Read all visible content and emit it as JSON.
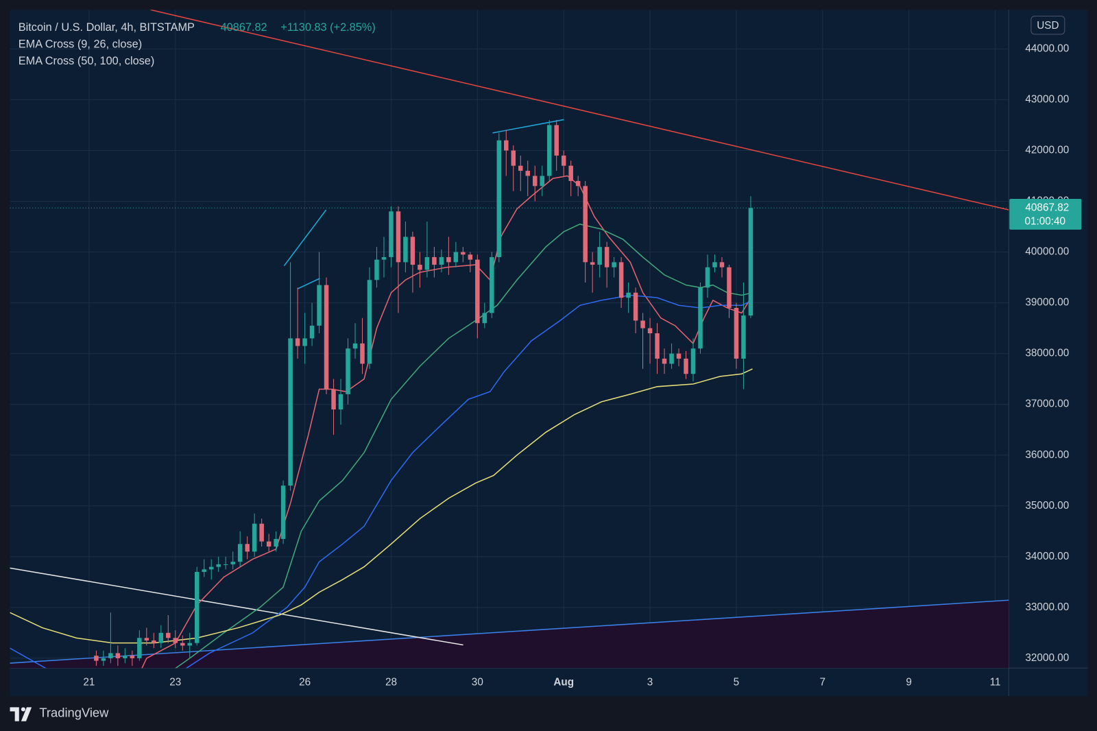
{
  "chart_data": {
    "type": "candlestick",
    "title": "Bitcoin / U.S. Dollar, 4h, BITSTAMP",
    "change": "+1130.83 (+2.85%)",
    "countdown": "01:00:40",
    "currency": "USD",
    "brand": "TradingView",
    "indicators": [
      "EMA Cross (9, 26, close)",
      "EMA Cross (50, 100, close)"
    ],
    "up_color": "#26a69a",
    "down_color": "#e06a78",
    "xlim": [
      -44,
      511.5
    ],
    "ylim": [
      31807,
      44771
    ],
    "xticks": [
      {
        "value": 0,
        "label": "21"
      },
      {
        "value": 48,
        "label": "23"
      },
      {
        "value": 120,
        "label": "26"
      },
      {
        "value": 168,
        "label": "28"
      },
      {
        "value": 216,
        "label": "30"
      },
      {
        "value": 264,
        "label": "Aug"
      },
      {
        "value": 312,
        "label": "3"
      },
      {
        "value": 360,
        "label": "5"
      },
      {
        "value": 408,
        "label": "7"
      },
      {
        "value": 456,
        "label": "9"
      },
      {
        "value": 504,
        "label": "11"
      }
    ],
    "yticks": [
      {
        "value": 32000,
        "label": "32000.00"
      },
      {
        "value": 33000,
        "label": "33000.00"
      },
      {
        "value": 34000,
        "label": "34000.00"
      },
      {
        "value": 35000,
        "label": "35000.00"
      },
      {
        "value": 36000,
        "label": "36000.00"
      },
      {
        "value": 37000,
        "label": "37000.00"
      },
      {
        "value": 38000,
        "label": "38000.00"
      },
      {
        "value": 39000,
        "label": "39000.00"
      },
      {
        "value": 40000,
        "label": "40000.00"
      },
      {
        "value": 41000,
        "label": "41000.00"
      },
      {
        "value": 42000,
        "label": "42000.00"
      },
      {
        "value": 43000,
        "label": "43000.00"
      },
      {
        "value": 44000,
        "label": "44000.00"
      }
    ],
    "grid": true,
    "x": [
      4,
      8,
      12,
      16,
      20,
      24,
      28,
      32,
      36,
      40,
      44,
      48,
      52,
      56,
      60,
      64,
      68,
      72,
      76,
      80,
      84,
      88,
      92,
      96,
      100,
      104,
      108,
      112,
      116,
      120,
      124,
      128,
      132,
      136,
      140,
      144,
      148,
      152,
      156,
      160,
      164,
      168,
      172,
      176,
      180,
      184,
      188,
      192,
      196,
      200,
      204,
      208,
      212,
      216,
      220,
      224,
      228,
      232,
      236,
      240,
      244,
      248,
      252,
      256,
      260,
      264,
      268,
      272,
      276,
      280,
      284,
      288,
      292,
      296,
      300,
      304,
      308,
      312,
      316,
      320,
      324,
      328,
      332,
      336,
      340,
      344,
      348,
      352,
      356,
      360,
      364,
      368
    ],
    "open": [
      32050,
      31950,
      32000,
      32100,
      32000,
      32050,
      32000,
      32400,
      32350,
      32300,
      32500,
      32400,
      32300,
      32250,
      32300,
      33700,
      33750,
      33800,
      33850,
      33850,
      33900,
      34250,
      34100,
      34650,
      34300,
      34200,
      34350,
      35400,
      38300,
      38150,
      38300,
      38550,
      39350,
      37300,
      36900,
      37200,
      38100,
      38200,
      37800,
      39450,
      39850,
      39900,
      40800,
      39800,
      40300,
      39750,
      39650,
      39900,
      39750,
      39900,
      39800,
      40000,
      39950,
      39850,
      38600,
      38800,
      39900,
      42200,
      42000,
      41700,
      41600,
      41500,
      41300,
      41500,
      42500,
      41900,
      41700,
      41400,
      41300,
      39800,
      39750,
      40100,
      39700,
      39800,
      39100,
      39200,
      38650,
      38500,
      38400,
      37900,
      37800,
      38000,
      37900,
      37600,
      38100,
      39300,
      39700,
      39800,
      39700,
      38900,
      37900,
      38750
    ],
    "high": [
      32150,
      32150,
      32900,
      32250,
      32200,
      32150,
      32550,
      32600,
      32500,
      32650,
      32850,
      32550,
      32450,
      32500,
      33800,
      33950,
      33950,
      34000,
      34000,
      34100,
      34500,
      34400,
      34850,
      34750,
      34450,
      34500,
      35500,
      39800,
      39300,
      38800,
      39000,
      40000,
      39500,
      37500,
      37500,
      38300,
      38600,
      38700,
      39700,
      40100,
      40300,
      40900,
      40900,
      40600,
      40400,
      40000,
      40600,
      40100,
      40050,
      40300,
      40200,
      40100,
      40000,
      39950,
      39000,
      40000,
      42350,
      42400,
      42100,
      41900,
      41800,
      41700,
      41700,
      42600,
      42600,
      42000,
      41800,
      41500,
      41400,
      40000,
      40400,
      40200,
      39900,
      39900,
      39400,
      39300,
      38800,
      38700,
      38600,
      38100,
      38200,
      38100,
      38050,
      38300,
      39400,
      39950,
      39950,
      39900,
      39750,
      39000,
      39400,
      41100
    ],
    "low": [
      31850,
      31850,
      31900,
      31850,
      31900,
      31850,
      31950,
      32250,
      32200,
      32200,
      32300,
      32200,
      32150,
      32000,
      32250,
      33600,
      33550,
      33700,
      33750,
      33750,
      33800,
      33950,
      34000,
      34200,
      34100,
      34100,
      34250,
      35300,
      37900,
      37800,
      38150,
      38400,
      37200,
      36400,
      36600,
      37000,
      37900,
      37600,
      37700,
      39300,
      39500,
      39700,
      38800,
      39600,
      39200,
      39300,
      39500,
      39500,
      39600,
      39550,
      39700,
      39800,
      39600,
      38300,
      38500,
      38700,
      39800,
      41500,
      41200,
      41200,
      41100,
      41000,
      41100,
      41400,
      41600,
      41500,
      41100,
      41100,
      39400,
      39200,
      39500,
      39300,
      39500,
      38900,
      38800,
      38400,
      37700,
      37800,
      37600,
      37600,
      37700,
      37750,
      37500,
      37450,
      38000,
      39100,
      39600,
      39500,
      38700,
      37700,
      37300,
      38700
    ],
    "close": [
      31950,
      32000,
      32100,
      32000,
      32050,
      32000,
      32400,
      32350,
      32300,
      32500,
      32400,
      32300,
      32250,
      32300,
      33700,
      33750,
      33800,
      33850,
      33850,
      33900,
      34250,
      34100,
      34650,
      34300,
      34200,
      34350,
      35400,
      38300,
      38150,
      38300,
      38550,
      39350,
      37300,
      36900,
      37200,
      38100,
      38200,
      37800,
      39450,
      39850,
      39900,
      40800,
      39800,
      40300,
      39750,
      39650,
      39900,
      39750,
      39900,
      39800,
      40000,
      39950,
      39850,
      38600,
      38800,
      39900,
      42200,
      42000,
      41700,
      41600,
      41500,
      41300,
      41500,
      42500,
      41900,
      41700,
      41400,
      41300,
      39800,
      39750,
      40100,
      39700,
      39800,
      39100,
      39200,
      38650,
      38500,
      38400,
      37900,
      37800,
      38000,
      37900,
      37600,
      38100,
      39300,
      39700,
      39800,
      39700,
      38900,
      37900,
      38750,
      40867.82
    ],
    "series": [
      {
        "color": "#e8636f",
        "x": [
          28,
          32,
          48,
          60,
          75,
          91,
          104,
          112,
          122,
          128,
          135,
          143,
          153,
          160,
          168,
          176,
          184,
          199,
          215,
          223,
          229,
          238,
          246,
          258,
          266,
          273,
          281,
          289,
          301,
          308,
          318,
          326,
          336,
          342,
          347,
          355,
          363,
          369
        ],
        "values": [
          31700,
          32000,
          32300,
          33050,
          33600,
          33950,
          34150,
          35050,
          36400,
          37300,
          37300,
          37250,
          37500,
          38500,
          39200,
          39450,
          39600,
          39700,
          39750,
          39450,
          40300,
          40850,
          41100,
          41450,
          41500,
          41300,
          40700,
          40300,
          39800,
          39200,
          38700,
          38550,
          38200,
          38700,
          39050,
          38900,
          38800,
          39150
        ]
      },
      {
        "color": "#43a87a",
        "x": [
          40,
          56,
          75,
          95,
          108,
          118,
          128,
          141,
          153,
          168,
          184,
          200,
          215,
          227,
          238,
          254,
          264,
          273,
          285,
          297,
          308,
          320,
          332,
          340,
          347,
          355,
          363,
          369
        ],
        "values": [
          31600,
          32000,
          32500,
          33000,
          33400,
          34500,
          35100,
          35500,
          36050,
          37100,
          37750,
          38300,
          38650,
          38950,
          39450,
          40100,
          40400,
          40550,
          40450,
          40250,
          39900,
          39550,
          39350,
          39300,
          39350,
          39200,
          39150,
          39200
        ]
      },
      {
        "color": "#2f6bf0",
        "x": [
          -44,
          -24,
          15,
          54,
          67,
          91,
          110,
          120,
          128,
          141,
          153,
          168,
          180,
          196,
          211,
          223,
          231,
          246,
          262,
          273,
          285,
          301,
          316,
          328,
          340,
          351,
          363,
          369
        ],
        "values": [
          32200,
          31800,
          31300,
          31800,
          32100,
          32500,
          33000,
          33400,
          33900,
          34250,
          34600,
          35500,
          36050,
          36600,
          37100,
          37250,
          37650,
          38250,
          38650,
          38950,
          39050,
          39150,
          39100,
          38950,
          38900,
          38950,
          38950,
          39050
        ]
      },
      {
        "color": "#e8df7a",
        "x": [
          -44,
          -26,
          -7,
          13,
          36,
          60,
          83,
          106,
          118,
          128,
          141,
          153,
          168,
          184,
          200,
          215,
          225,
          238,
          254,
          270,
          285,
          301,
          316,
          336,
          351,
          363,
          369
        ],
        "values": [
          32900,
          32600,
          32400,
          32300,
          32300,
          32400,
          32600,
          32850,
          33050,
          33300,
          33550,
          33800,
          34250,
          34750,
          35150,
          35450,
          35600,
          36000,
          36450,
          36800,
          37050,
          37200,
          37350,
          37400,
          37550,
          37600,
          37700
        ]
      }
    ]
  }
}
